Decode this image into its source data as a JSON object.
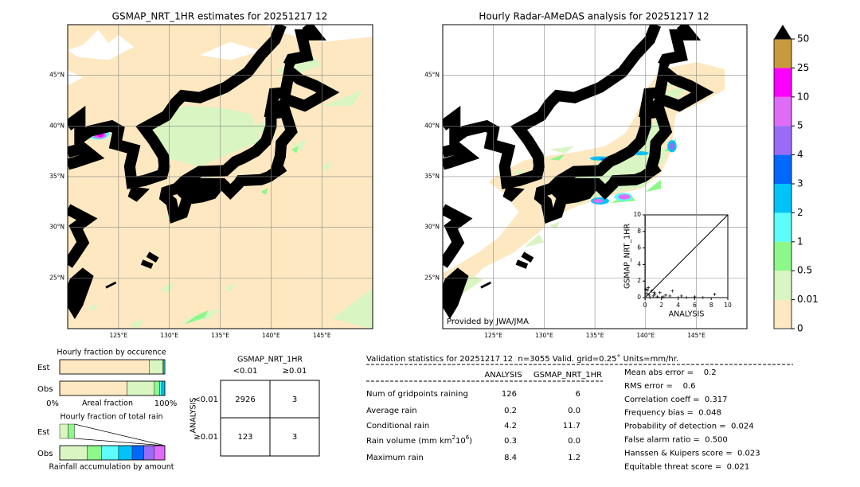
{
  "left_map": {
    "title": "GSMAP_NRT_1HR estimates for 20251217 12"
  },
  "right_map": {
    "title": "Hourly Radar-AMeDAS analysis for 20251217 12",
    "credit": "Provided by JWA/JMA"
  },
  "map_axes": {
    "lat_labels": [
      "45°N",
      "40°N",
      "35°N",
      "30°N",
      "25°N"
    ],
    "lon_labels": [
      "125°E",
      "130°E",
      "135°E",
      "140°E",
      "145°E"
    ]
  },
  "colorbar": {
    "levels": [
      0,
      0.01,
      0.5,
      1,
      2,
      3,
      4,
      5,
      10,
      25,
      50
    ],
    "colors": [
      "#fde8c1",
      "#d8f5c2",
      "#8ef78a",
      "#5cfdfa",
      "#00c3f8",
      "#0068fb",
      "#9a6bf7",
      "#df6cf7",
      "#fd00fd",
      "#c89a3e"
    ],
    "extend_color": "#000000"
  },
  "scatter": {
    "xlabel": "ANALYSIS",
    "ylabel": "GSMAP_NRT_1HR",
    "xlim": [
      0,
      10
    ],
    "ylim": [
      0,
      10
    ],
    "xticks": [
      0,
      2,
      4,
      6,
      8,
      10
    ],
    "yticks": [
      0,
      2,
      4,
      6,
      8,
      10
    ],
    "x": [
      0.2,
      0.4,
      0.5,
      0.8,
      1.0,
      1.2,
      1.5,
      1.8,
      2.0,
      2.5,
      3.0,
      3.3,
      4.0,
      4.4,
      5.0,
      6.0,
      7.0,
      8.4,
      0.3,
      0.6,
      1.1,
      2.2,
      0.1
    ],
    "y": [
      0.5,
      1.2,
      0.3,
      0.8,
      0.2,
      0.4,
      0.1,
      0.6,
      0.0,
      0.3,
      0.2,
      0.8,
      0.0,
      0.2,
      0.0,
      0.1,
      0.0,
      0.4,
      0.9,
      0.0,
      0.6,
      0.1,
      1.0
    ]
  },
  "fraction_occurrence": {
    "title": "Hourly fraction by occurence",
    "rows": [
      "Est",
      "Obs"
    ],
    "left_label": "0%",
    "center_label": "Areal fraction",
    "right_label": "100%",
    "est": [
      85,
      13,
      1,
      1
    ],
    "obs": [
      64,
      26,
      5,
      2,
      3
    ]
  },
  "fraction_total": {
    "title": "Hourly fraction of total rain",
    "rows": [
      "Est",
      "Obs"
    ],
    "xlabel": "Rainfall accumulation by amount",
    "est": [
      8,
      6
    ],
    "obs": [
      26,
      14,
      16,
      13,
      11,
      10,
      10
    ]
  },
  "contingency": {
    "title": "GSMAP_NRT_1HR",
    "col_headers": [
      "<0.01",
      "≥0.01"
    ],
    "side_label": "ANALYSIS",
    "row_headers": [
      "<0.01",
      "≥0.01"
    ],
    "cells": [
      [
        2926,
        3
      ],
      [
        123,
        3
      ]
    ]
  },
  "validation": {
    "header": "Validation statistics for 20251217 12  n=3055 Valid. grid=0.25˚ Units=mm/hr.",
    "col_headers": [
      "ANALYSIS",
      "GSMAP_NRT_1HR"
    ],
    "rows": [
      {
        "label": "Num of gridpoints raining",
        "analysis": "126",
        "gsmap": "6"
      },
      {
        "label": "Average rain",
        "analysis": "0.2",
        "gsmap": "0.0"
      },
      {
        "label": "Conditional rain",
        "analysis": "4.2",
        "gsmap": "11.7"
      },
      {
        "label": {
          "text": "Rain volume (mm km",
          "sup": "2",
          "base": "10",
          "exp": "6",
          "end": ")"
        },
        "analysis": "0.3",
        "gsmap": "0.0"
      },
      {
        "label": "Maximum rain",
        "analysis": "8.4",
        "gsmap": "1.2"
      }
    ],
    "scores": [
      "Mean abs error =    0.2",
      "RMS error =    0.6",
      "Correlation coeff =  0.317",
      "Frequency bias =  0.048",
      "Probability of detection =  0.024",
      "False alarm ratio =  0.500",
      "Hanssen & Kuipers score =  0.023",
      "Equitable threat score =  0.021"
    ]
  }
}
